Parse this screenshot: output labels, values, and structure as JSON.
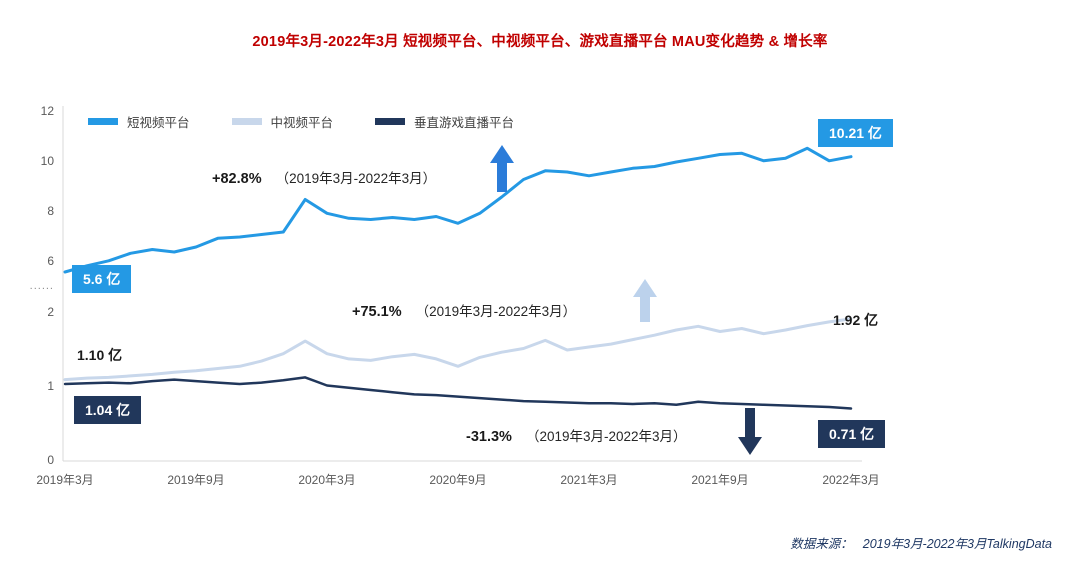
{
  "title": "2019年3月-2022年3月 短视频平台、中视频平台、游戏直播平台 MAU变化趋势 & 增长率",
  "legend": {
    "items": [
      {
        "label": "短视频平台",
        "color": "#2499E4"
      },
      {
        "label": "中视频平台",
        "color": "#C8D7EB"
      },
      {
        "label": "垂直游戏直播平台",
        "color": "#21375B"
      }
    ]
  },
  "chart_data": {
    "type": "line",
    "title": "2019年3月-2022年3月 短视频平台、中视频平台、游戏直播平台 MAU变化趋势 & 增长率",
    "unit": "亿",
    "x_range": {
      "start": "2019年3月",
      "end": "2022年3月",
      "interval": "monthly"
    },
    "x_axis": {
      "tick_labels": [
        "2019年3月",
        "2019年9月",
        "2020年3月",
        "2020年9月",
        "2021年3月",
        "2021年9月",
        "2022年3月"
      ]
    },
    "y_axis": {
      "top_ticks": [
        "12",
        "10",
        "8",
        "6"
      ],
      "break_marker": "......",
      "bottom_ticks": [
        "2",
        "1",
        "0"
      ],
      "top_scale_range": [
        6,
        12
      ],
      "bottom_scale_range": [
        0,
        2
      ],
      "grid": "off"
    },
    "legend_position": "top-left",
    "series": [
      {
        "id": "short-video",
        "name": "短视频平台",
        "color": "#2499E4",
        "start_label": "5.6 亿",
        "end_label": "10.21 亿",
        "growth_pct": "+82.8%",
        "growth_period": "（2019年3月-2022年3月）",
        "values": [
          5.6,
          5.85,
          6.05,
          6.35,
          6.5,
          6.4,
          6.6,
          6.95,
          7.0,
          7.1,
          7.2,
          8.5,
          7.95,
          7.75,
          7.7,
          7.78,
          7.7,
          7.82,
          7.55,
          7.95,
          8.6,
          9.3,
          9.65,
          9.6,
          9.45,
          9.6,
          9.75,
          9.82,
          10.0,
          10.15,
          10.3,
          10.35,
          10.05,
          10.15,
          10.55,
          10.05,
          10.21
        ]
      },
      {
        "id": "mid-video",
        "name": "中视频平台",
        "color": "#C8D7EB",
        "start_label": "1.10 亿",
        "end_label": "1.92 亿",
        "growth_pct": "+75.1%",
        "growth_period": "（2019年3月-2022年3月）",
        "values": [
          1.1,
          1.12,
          1.13,
          1.15,
          1.17,
          1.2,
          1.22,
          1.25,
          1.28,
          1.35,
          1.45,
          1.62,
          1.45,
          1.38,
          1.36,
          1.41,
          1.44,
          1.38,
          1.28,
          1.4,
          1.47,
          1.52,
          1.63,
          1.5,
          1.54,
          1.58,
          1.64,
          1.7,
          1.77,
          1.82,
          1.75,
          1.79,
          1.72,
          1.77,
          1.83,
          1.88,
          1.92
        ]
      },
      {
        "id": "game-live",
        "name": "垂直游戏直播平台",
        "color": "#21375B",
        "start_label": "1.04 亿",
        "end_label": "0.71 亿",
        "growth_pct": "-31.3%",
        "growth_period": "（2019年3月-2022年3月）",
        "values": [
          1.04,
          1.05,
          1.06,
          1.05,
          1.08,
          1.1,
          1.08,
          1.06,
          1.04,
          1.06,
          1.09,
          1.13,
          1.02,
          0.99,
          0.96,
          0.93,
          0.9,
          0.89,
          0.87,
          0.85,
          0.83,
          0.81,
          0.8,
          0.79,
          0.78,
          0.78,
          0.77,
          0.78,
          0.76,
          0.8,
          0.78,
          0.77,
          0.76,
          0.75,
          0.74,
          0.73,
          0.71
        ]
      }
    ]
  },
  "footer": {
    "source_prefix": "数据来源：",
    "source_text": "2019年3月-2022年3月TalkingData"
  },
  "colors": {
    "title": "#C00000",
    "short_video": "#2499E4",
    "mid_video": "#C8D7EB",
    "game_live": "#21375B",
    "axis_text": "#595959",
    "footer_text": "#1F3864"
  }
}
